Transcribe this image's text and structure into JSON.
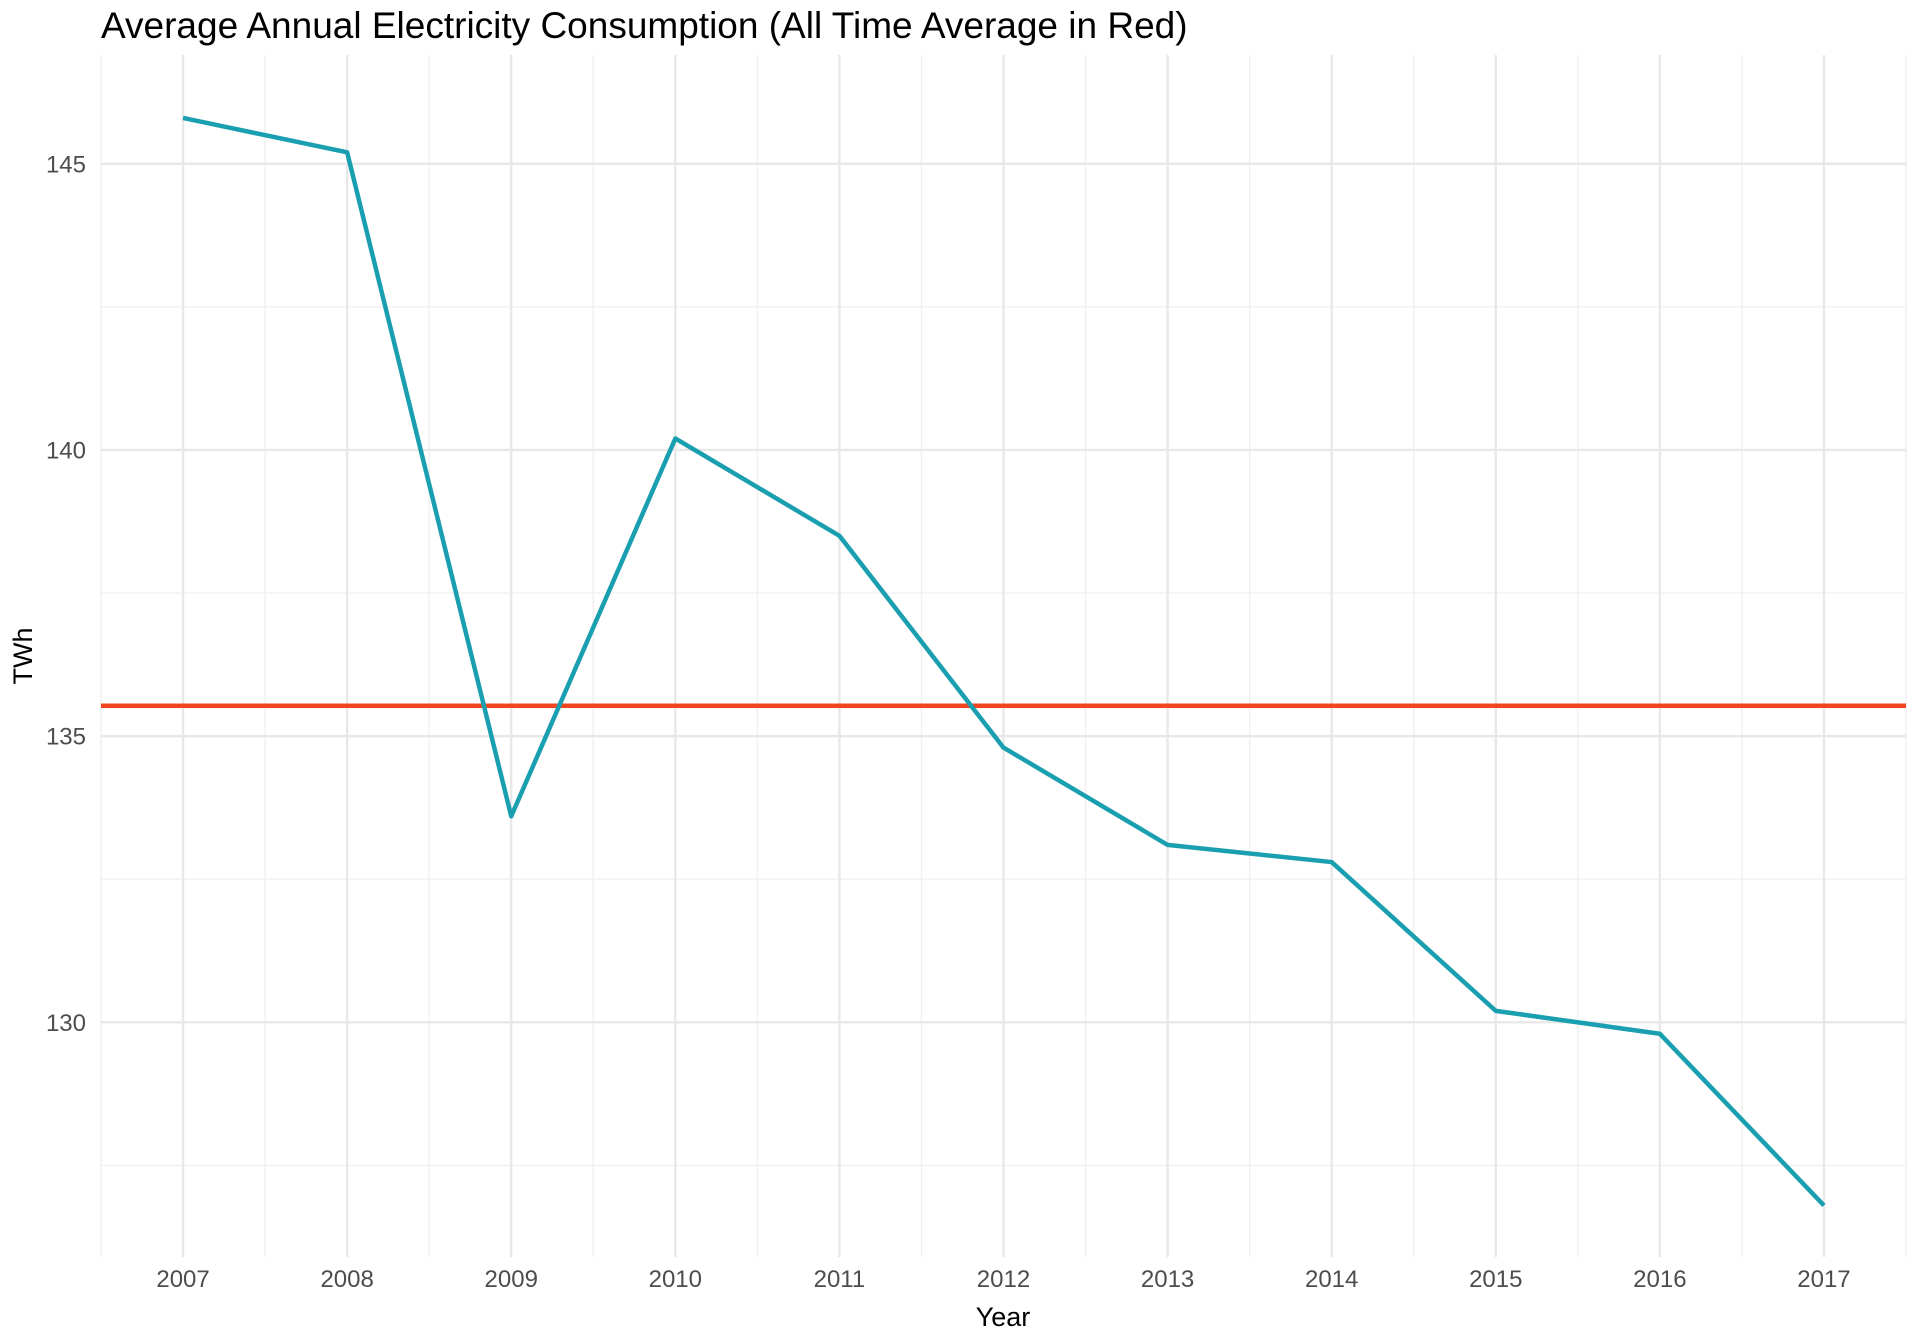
{
  "title": "Average Annual Electricity Consumption (All Time Average in Red)",
  "chart_data": {
    "type": "line",
    "title": "Average Annual Electricity Consumption (All Time Average in Red)",
    "xlabel": "Year",
    "ylabel": "TWh",
    "x": [
      2007,
      2008,
      2009,
      2010,
      2011,
      2012,
      2013,
      2014,
      2015,
      2016,
      2017
    ],
    "series": [
      {
        "name": "annual-consumption",
        "values": [
          145.8,
          145.2,
          133.6,
          140.2,
          138.5,
          134.8,
          133.1,
          132.8,
          130.2,
          129.8,
          126.8
        ],
        "color": "#1a9fb0"
      }
    ],
    "average_line": {
      "name": "all-time-average",
      "value": 135.53,
      "color": "#f2441f"
    },
    "x_ticks": [
      2007,
      2008,
      2009,
      2010,
      2011,
      2012,
      2013,
      2014,
      2015,
      2016,
      2017
    ],
    "y_ticks": [
      130,
      135,
      140,
      145
    ],
    "y_minor_ticks": [
      127.5,
      132.5,
      137.5,
      142.5
    ],
    "xlim": [
      2006.5,
      2017.5
    ],
    "ylim": [
      125.9,
      146.9
    ],
    "grid": "major+minor",
    "legend": "none",
    "colors": {
      "background": "#ffffff",
      "grid_major": "#e8e8e8",
      "grid_minor": "#f0f0f0",
      "tick_label": "#4d4d4d",
      "text": "#000000"
    }
  }
}
